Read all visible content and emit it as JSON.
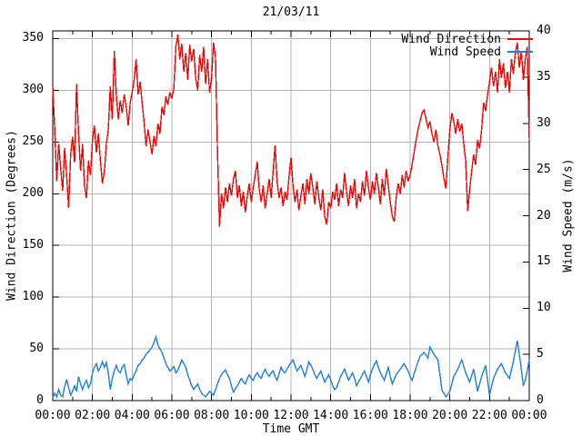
{
  "colors": {
    "wind_direction_line": "#fe0000",
    "wind_speed_line": "#1d7fe3",
    "grid": "#b4b4b4",
    "frame": "#000000",
    "background": "#ffffff",
    "text": "#000000"
  },
  "legend": {
    "position": "top-right-inside",
    "entries": [
      {
        "label": "Wind Direction",
        "color": "#fe0000"
      },
      {
        "label": "Wind Speed",
        "color": "#1d7fe3"
      }
    ]
  },
  "chart_data": {
    "type": "line",
    "title": "21/03/11",
    "xlabel": "Time GMT",
    "grid": true,
    "x_axis": {
      "unit": "hours",
      "start": 0,
      "end": 24,
      "major_tick_interval_hours": 2,
      "minor_tick_interval_hours": 1,
      "tick_labels": [
        "00:00",
        "02:00",
        "04:00",
        "06:00",
        "08:00",
        "10:00",
        "12:00",
        "14:00",
        "16:00",
        "18:00",
        "20:00",
        "22:00",
        "00:00"
      ]
    },
    "y_left_axis": {
      "label": "Wind Direction (Degrees)",
      "range": [
        0,
        360
      ],
      "tick_interval": 50,
      "tick_labels": [
        "0",
        "50",
        "100",
        "150",
        "200",
        "250",
        "300",
        "350"
      ]
    },
    "y_right_axis": {
      "label": "Wind Speed (m/s)",
      "range": [
        0,
        40
      ],
      "tick_interval": 5,
      "tick_labels": [
        "0",
        "5",
        "10",
        "15",
        "20",
        "25",
        "30",
        "35",
        "40"
      ]
    },
    "x_start": 0,
    "x_step": 0.1,
    "series": [
      {
        "name": "Wind Direction",
        "axis": "left",
        "unit": "degrees",
        "color": "#fe0000",
        "values": [
          303,
          262,
          212,
          248,
          225,
          203,
          244,
          218,
          186,
          238,
          255,
          230,
          306,
          258,
          222,
          248,
          208,
          196,
          232,
          218,
          252,
          266,
          240,
          258,
          232,
          210,
          222,
          248,
          262,
          304,
          272,
          338,
          296,
          272,
          290,
          278,
          296,
          284,
          266,
          288,
          298,
          310,
          330,
          296,
          308,
          288,
          270,
          246,
          262,
          250,
          238,
          256,
          246,
          268,
          258,
          284,
          276,
          294,
          286,
          298,
          292,
          302,
          342,
          354,
          330,
          345,
          318,
          336,
          310,
          344,
          328,
          340,
          312,
          300,
          334,
          318,
          342,
          306,
          330,
          298,
          312,
          346,
          332,
          240,
          168,
          200,
          186,
          206,
          192,
          210,
          198,
          214,
          222,
          196,
          208,
          188,
          202,
          182,
          198,
          210,
          192,
          206,
          218,
          231,
          204,
          192,
          208,
          186,
          200,
          214,
          196,
          222,
          247,
          212,
          196,
          206,
          188,
          202,
          194,
          216,
          235,
          208,
          192,
          204,
          184,
          198,
          210,
          190,
          214,
          200,
          220,
          206,
          190,
          212,
          196,
          184,
          204,
          178,
          170,
          192,
          186,
          202,
          194,
          210,
          188,
          204,
          196,
          220,
          202,
          188,
          208,
          196,
          214,
          186,
          200,
          192,
          212,
          198,
          222,
          206,
          194,
          212,
          200,
          220,
          206,
          190,
          214,
          198,
          224,
          208,
          192,
          178,
          173,
          196,
          210,
          200,
          218,
          206,
          222,
          212,
          218,
          228,
          240,
          252,
          262,
          270,
          278,
          281,
          272,
          264,
          270,
          258,
          250,
          262,
          246,
          238,
          228,
          215,
          205,
          235,
          262,
          278,
          270,
          258,
          272,
          260,
          268,
          248,
          232,
          183,
          204,
          222,
          238,
          228,
          252,
          244,
          262,
          288,
          280,
          296,
          308,
          322,
          304,
          318,
          298,
          330,
          312,
          326,
          302,
          318,
          298,
          330,
          316,
          336,
          346,
          322,
          338,
          310,
          330,
          342,
          252
        ]
      },
      {
        "name": "Wind Speed",
        "axis": "right",
        "unit": "m/s",
        "color": "#1d7fe3",
        "values": [
          0.3,
          0.8,
          0.4,
          1.2,
          0.6,
          0.4,
          1.5,
          2.3,
          1.4,
          0.6,
          1.0,
          1.6,
          1.0,
          2.6,
          1.8,
          1.2,
          1.8,
          2.2,
          1.4,
          1.8,
          3.0,
          3.6,
          4.0,
          3.2,
          3.6,
          4.2,
          3.6,
          4.1,
          3.0,
          1.2,
          2.4,
          3.2,
          3.8,
          3.2,
          3.0,
          3.6,
          3.9,
          2.8,
          1.8,
          2.4,
          2.2,
          2.8,
          3.2,
          3.8,
          4.0,
          4.4,
          4.6,
          5.0,
          5.2,
          5.5,
          5.8,
          6.3,
          6.9,
          6.0,
          5.6,
          5.2,
          4.6,
          4.0,
          3.6,
          3.2,
          3.4,
          3.7,
          3.0,
          3.3,
          3.8,
          4.4,
          4.0,
          3.6,
          2.8,
          2.2,
          1.6,
          1.2,
          1.5,
          1.8,
          1.2,
          0.8,
          0.6,
          0.4,
          0.7,
          1.0,
          0.8,
          0.6,
          1.2,
          1.8,
          2.4,
          2.8,
          3.1,
          3.3,
          2.8,
          2.4,
          1.6,
          0.9,
          1.3,
          1.6,
          2.0,
          2.4,
          2.0,
          1.8,
          2.4,
          2.8,
          2.4,
          2.2,
          2.7,
          3.0,
          2.6,
          2.4,
          3.0,
          3.4,
          2.9,
          2.6,
          3.0,
          3.2,
          2.6,
          2.2,
          2.9,
          3.6,
          3.2,
          3.0,
          3.4,
          3.8,
          4.1,
          4.4,
          3.8,
          3.2,
          3.5,
          3.8,
          3.2,
          2.6,
          3.4,
          4.2,
          3.8,
          3.4,
          2.8,
          2.4,
          2.8,
          3.2,
          2.6,
          2.0,
          2.4,
          2.8,
          2.2,
          1.6,
          1.2,
          1.4,
          2.0,
          2.6,
          3.0,
          3.4,
          2.8,
          2.2,
          2.6,
          3.0,
          2.4,
          1.6,
          2.0,
          2.4,
          2.8,
          3.2,
          2.6,
          2.0,
          2.8,
          3.4,
          3.9,
          4.3,
          3.6,
          3.0,
          2.6,
          2.2,
          2.9,
          3.6,
          2.6,
          1.8,
          2.3,
          2.8,
          3.1,
          3.4,
          3.7,
          4.0,
          3.6,
          3.2,
          2.6,
          2.2,
          2.9,
          3.6,
          4.2,
          4.8,
          5.0,
          5.2,
          4.9,
          4.6,
          5.8,
          5.4,
          5.0,
          4.7,
          4.4,
          2.8,
          1.2,
          0.8,
          0.4,
          0.7,
          1.0,
          1.8,
          2.6,
          3.0,
          3.4,
          3.9,
          4.4,
          3.7,
          3.0,
          2.5,
          2.0,
          2.7,
          3.4,
          2.2,
          1.0,
          1.8,
          2.6,
          3.2,
          3.8,
          2.2,
          0.6,
          1.5,
          2.4,
          2.9,
          3.4,
          3.7,
          4.0,
          3.5,
          3.0,
          2.7,
          2.4,
          3.3,
          4.2,
          5.4,
          6.5,
          5.0,
          3.4,
          1.6,
          2.2,
          3.2,
          4.4
        ]
      }
    ]
  }
}
